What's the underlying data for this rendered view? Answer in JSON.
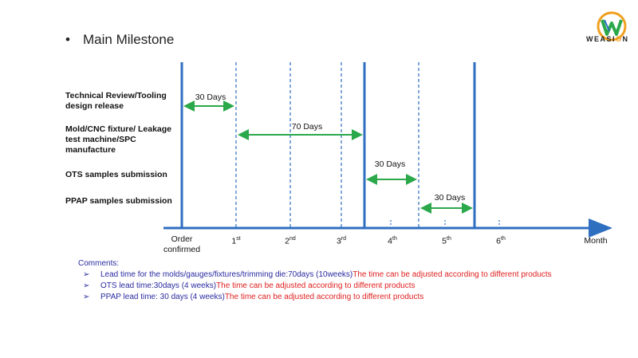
{
  "title": "Main Milestone",
  "logo": {
    "text_prefix": "WEASI",
    "text_o": "O",
    "text_suffix": "N"
  },
  "rows": [
    {
      "label": "Technical Review/Tooling design release"
    },
    {
      "label": "Mold/CNC fixture/ Leakage test machine/SPC manufacture"
    },
    {
      "label": "OTS samples submission"
    },
    {
      "label": "PPAP samples submission"
    }
  ],
  "axis": {
    "ticks": [
      {
        "main": "Order confirmed",
        "sup": ""
      },
      {
        "main": "1",
        "sup": "st"
      },
      {
        "main": "2",
        "sup": "nd"
      },
      {
        "main": "3",
        "sup": "rd"
      },
      {
        "main": "4",
        "sup": "th"
      },
      {
        "main": "5",
        "sup": "th"
      },
      {
        "main": "6",
        "sup": "th"
      }
    ],
    "end_label": "Month"
  },
  "durations": [
    {
      "label": "30 Days"
    },
    {
      "label": "70 Days"
    },
    {
      "label": "30 Days"
    },
    {
      "label": "30 Days"
    }
  ],
  "comments": {
    "heading": "Comments:",
    "items": [
      {
        "blue": "Lead time for the molds/gauges/fixtures/trimming die:70days (10weeks)",
        "red": "The time can be adjusted according to different products"
      },
      {
        "blue": "OTS lead time:30days (4 weeks)",
        "red": "The time can be adjusted according to different products"
      },
      {
        "blue": "PPAP lead time: 30 days (4 weeks)",
        "red": "The time can be adjusted according to different products"
      }
    ]
  },
  "colors": {
    "axis": "#2f6fc0",
    "arrow": "#2aa84a",
    "comment_blue": "#2a2aa0",
    "comment_red": "#e02020"
  }
}
